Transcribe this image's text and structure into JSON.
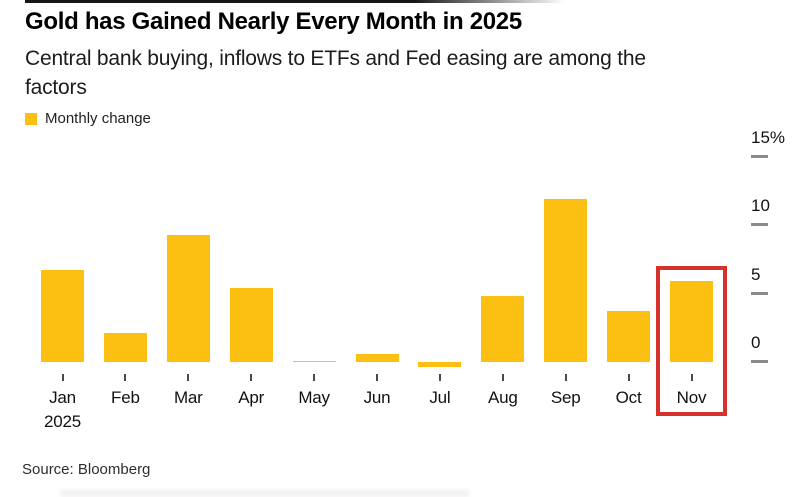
{
  "header": {
    "title": "Gold has Gained Nearly Every Month in 2025",
    "subtitle": "Central bank buying, inflows to ETFs and Fed easing are among the factors",
    "subtitle_line1": "Central bank buying, inflows to ETFs and Fed easing are among the",
    "subtitle_line2": "factors"
  },
  "legend": {
    "label": "Monthly change",
    "swatch_color": "#FCC013"
  },
  "chart_data": {
    "type": "bar",
    "title": "Gold has Gained Nearly Every Month in 2025",
    "subtitle": "Central bank buying, inflows to ETFs and Fed easing are among the factors",
    "categories": [
      "Jan",
      "Feb",
      "Mar",
      "Apr",
      "May",
      "Jun",
      "Jul",
      "Aug",
      "Sep",
      "Oct",
      "Nov"
    ],
    "x_axis_year_label": "2025",
    "values": [
      6.7,
      2.1,
      9.3,
      5.4,
      0.1,
      0.6,
      -0.4,
      4.8,
      11.9,
      3.7,
      5.9
    ],
    "unit": "%",
    "series_name": "Monthly change",
    "bar_color": "#FCC013",
    "y_ticks": [
      0,
      5,
      10,
      15
    ],
    "y_tick_labels": [
      "0",
      "5",
      "10",
      "15%"
    ],
    "ylim": [
      -1,
      16
    ],
    "grid": false,
    "legend_position": "top-left",
    "axis_side": "right",
    "highlight": {
      "category": "Nov",
      "box_color": "#D5312D"
    }
  },
  "footer": {
    "source": "Source: Bloomberg"
  }
}
